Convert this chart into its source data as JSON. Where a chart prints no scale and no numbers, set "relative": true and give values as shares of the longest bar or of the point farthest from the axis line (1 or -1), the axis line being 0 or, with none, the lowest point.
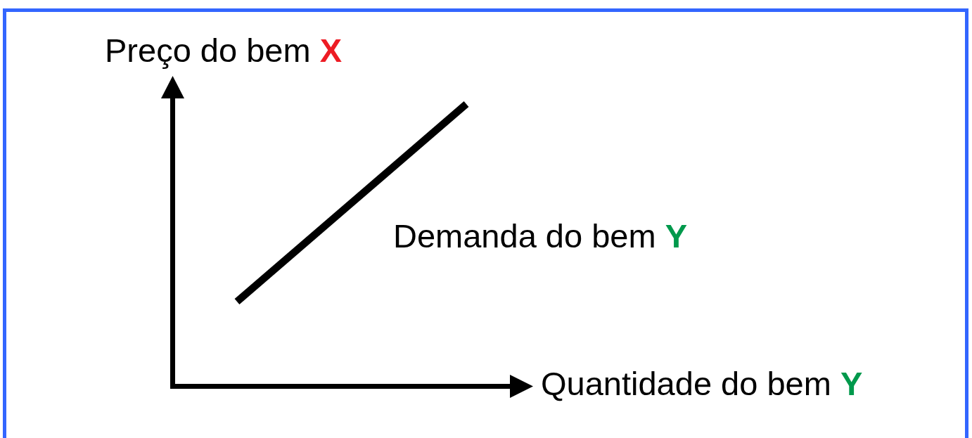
{
  "chart_data": {
    "type": "line",
    "ylabel": "Preço do bem X",
    "xlabel": "Quantidade do bem Y",
    "categories": [
      null,
      null
    ],
    "series": [
      {
        "name": "Demanda do bem Y",
        "color": "#000000",
        "values": [
          0.3,
          1
        ]
      }
    ],
    "relative": true,
    "tick_labels": false,
    "grid": false,
    "legend": false,
    "marker": "none",
    "line_style": "solid"
  }
}
